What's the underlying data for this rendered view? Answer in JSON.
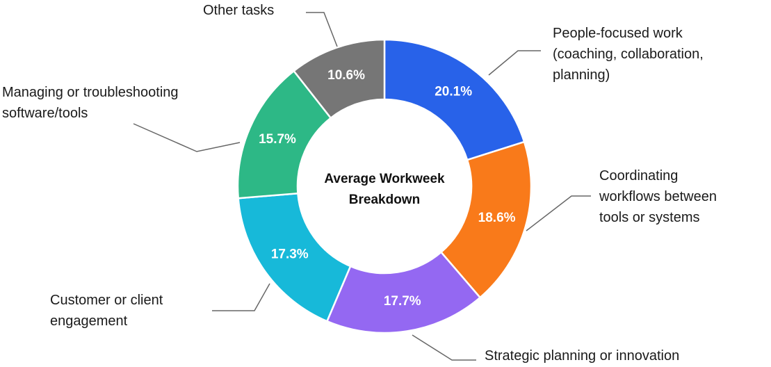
{
  "chart_data": {
    "type": "donut",
    "title": "Average Workweek Breakdown",
    "categories": [
      "People-focused work (coaching, collaboration, planning)",
      "Coordinating workflows between tools or systems",
      "Strategic planning or innovation",
      "Customer or client engagement",
      "Managing or troubleshooting software/tools",
      "Other tasks"
    ],
    "values": [
      20.1,
      18.6,
      17.7,
      17.3,
      15.7,
      10.6
    ],
    "value_labels": [
      "20.1%",
      "18.6%",
      "17.7%",
      "17.3%",
      "15.7%",
      "10.6%"
    ],
    "colors": [
      "#2862e9",
      "#f97a1a",
      "#9468f2",
      "#17b9d9",
      "#2db886",
      "#767676"
    ]
  }
}
